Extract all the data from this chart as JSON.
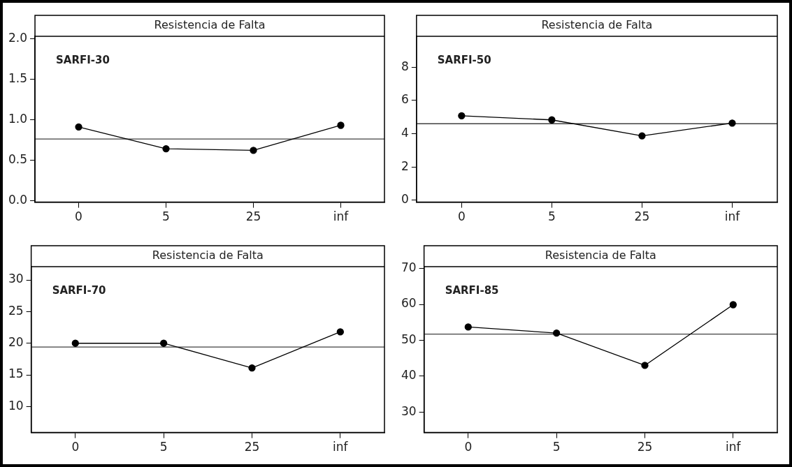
{
  "chart_data": [
    {
      "type": "line",
      "title": "Resistencia de Falta",
      "categories": [
        "0",
        "5",
        "25",
        "inf"
      ],
      "marker": "circle",
      "line_style": "solid",
      "series": [
        {
          "color": "#000000",
          "values": [
            0.91,
            0.64,
            0.62,
            0.93
          ]
        }
      ],
      "ylim": [
        -0.02,
        2.03
      ],
      "yticks": [
        {
          "value": 0,
          "label": "0.0"
        },
        {
          "value": 0.5,
          "label": "0.5"
        },
        {
          "value": 1,
          "label": "1.0"
        },
        {
          "value": 1.5,
          "label": "1.5"
        },
        {
          "value": 2,
          "label": "2.0"
        }
      ],
      "ref_lines": [
        {
          "axis": "y",
          "value": 0.76,
          "color": "#404040"
        }
      ],
      "annotations": [
        "SARFI-30"
      ]
    },
    {
      "type": "line",
      "title": "Resistencia de Falta",
      "categories": [
        "0",
        "5",
        "25",
        "inf"
      ],
      "marker": "circle",
      "line_style": "solid",
      "series": [
        {
          "color": "#000000",
          "values": [
            5.08,
            4.83,
            3.87,
            4.64
          ]
        }
      ],
      "ylim": [
        -0.12,
        9.86
      ],
      "yticks": [
        0,
        2,
        4,
        6,
        8
      ],
      "ref_lines": [
        {
          "axis": "y",
          "value": 4.6,
          "color": "#404040"
        }
      ],
      "annotations": [
        "SARFI-50"
      ]
    },
    {
      "type": "line",
      "title": "Resistencia de Falta",
      "categories": [
        "0",
        "5",
        "25",
        "inf"
      ],
      "marker": "circle",
      "line_style": "solid",
      "series": [
        {
          "color": "#000000",
          "values": [
            20.0,
            20.0,
            16.1,
            21.8
          ]
        }
      ],
      "ylim": [
        5.9,
        32.1
      ],
      "yticks": [
        10,
        15,
        20,
        25,
        30
      ],
      "ref_lines": [
        {
          "axis": "y",
          "value": 19.4,
          "color": "#404040"
        }
      ],
      "annotations": [
        "SARFI-70"
      ]
    },
    {
      "type": "line",
      "title": "Resistencia de Falta",
      "categories": [
        "0",
        "5",
        "25",
        "inf"
      ],
      "marker": "circle",
      "line_style": "solid",
      "series": [
        {
          "color": "#000000",
          "values": [
            53.7,
            52.0,
            43.0,
            59.9
          ]
        }
      ],
      "ylim": [
        24.3,
        70.5
      ],
      "yticks": [
        30,
        40,
        50,
        60,
        70
      ],
      "ref_lines": [
        {
          "axis": "y",
          "value": 51.7,
          "color": "#404040"
        }
      ],
      "annotations": [
        "SARFI-85"
      ]
    }
  ]
}
